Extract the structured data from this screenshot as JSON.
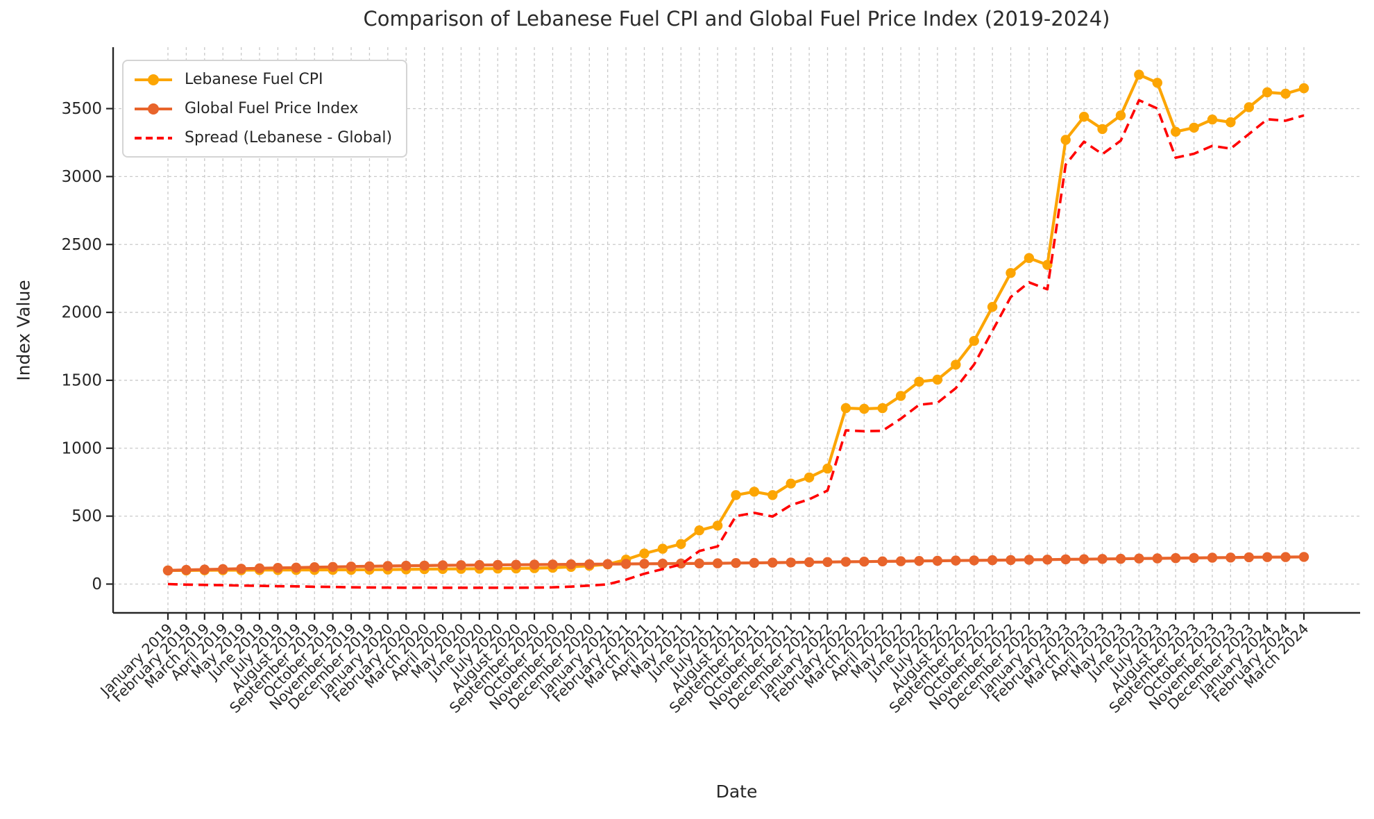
{
  "title": "Comparison of Lebanese Fuel CPI and Global Fuel Price Index (2019-2024)",
  "xlabel": "Date",
  "ylabel": "Index Value",
  "yticks": [
    0,
    500,
    1000,
    1500,
    2000,
    2500,
    3000,
    3500
  ],
  "colors": {
    "lebanese": "#FCA503",
    "global": "#E8642B",
    "spread": "#FF0000",
    "grid": "#c9c9c9",
    "axis": "#262626",
    "text": "#262626"
  },
  "legend": {
    "position": "upper left",
    "items": [
      {
        "label": "Lebanese Fuel CPI",
        "color": "#FCA503",
        "style": "solid",
        "marker": "circle"
      },
      {
        "label": "Global Fuel Price Index",
        "color": "#E8642B",
        "style": "solid",
        "marker": "circle"
      },
      {
        "label": "Spread (Lebanese - Global)",
        "color": "#FF0000",
        "style": "dashed",
        "marker": "none"
      }
    ]
  },
  "chart_data": {
    "type": "line",
    "title": "Comparison of Lebanese Fuel CPI and Global Fuel Price Index (2019-2024)",
    "xlabel": "Date",
    "ylabel": "Index Value",
    "grid": true,
    "legend_position": "upper left",
    "ylim": [
      -215,
      3955
    ],
    "yticks": [
      0,
      500,
      1000,
      1500,
      2000,
      2500,
      3000,
      3500
    ],
    "categories": [
      "January 2019",
      "February 2019",
      "March 2019",
      "April 2019",
      "May 2019",
      "June 2019",
      "July 2019",
      "August 2019",
      "September 2019",
      "October 2019",
      "November 2019",
      "December 2019",
      "January 2020",
      "February 2020",
      "March 2020",
      "April 2020",
      "May 2020",
      "June 2020",
      "July 2020",
      "August 2020",
      "September 2020",
      "October 2020",
      "November 2020",
      "December 2020",
      "January 2021",
      "February 2021",
      "March 2021",
      "April 2021",
      "May 2021",
      "June 2021",
      "July 2021",
      "August 2021",
      "September 2021",
      "October 2021",
      "November 2021",
      "December 2021",
      "January 2022",
      "February 2022",
      "March 2022",
      "April 2022",
      "May 2022",
      "June 2022",
      "July 2022",
      "August 2022",
      "September 2022",
      "October 2022",
      "November 2022",
      "December 2022",
      "January 2023",
      "February 2023",
      "March 2023",
      "April 2023",
      "May 2023",
      "June 2023",
      "July 2023",
      "August 2023",
      "September 2023",
      "October 2023",
      "November 2023",
      "December 2023",
      "January 2024",
      "February 2024",
      "March 2024"
    ],
    "series": [
      {
        "name": "Lebanese Fuel CPI",
        "color": "#FCA503",
        "style": "solid",
        "marker": "circle",
        "values": [
          100,
          100,
          101,
          102,
          102,
          103,
          103,
          104,
          104,
          105,
          105,
          106,
          107,
          108,
          110,
          111,
          112,
          113,
          114,
          115,
          117,
          120,
          126,
          135,
          145,
          180,
          225,
          260,
          295,
          395,
          430,
          655,
          680,
          655,
          740,
          785,
          850,
          1295,
          1290,
          1295,
          1385,
          1490,
          1505,
          1615,
          1790,
          2040,
          2290,
          2400,
          2350,
          3270,
          3440,
          3350,
          3450,
          3750,
          3690,
          3330,
          3360,
          3420,
          3400,
          3510,
          3620,
          3610,
          3650
        ]
      },
      {
        "name": "Global Fuel Price Index",
        "color": "#E8642B",
        "style": "solid",
        "marker": "circle",
        "values": [
          100,
          104,
          107,
          110,
          113,
          116,
          119,
          121,
          124,
          126,
          129,
          131,
          133,
          135,
          136,
          138,
          139,
          140,
          141,
          142,
          143,
          144,
          145,
          146,
          147,
          148,
          149,
          150,
          151,
          152,
          153,
          155,
          156,
          158,
          159,
          161,
          162,
          164,
          165,
          167,
          168,
          170,
          171,
          173,
          174,
          176,
          177,
          179,
          180,
          182,
          183,
          185,
          186,
          188,
          189,
          191,
          192,
          194,
          195,
          197,
          198,
          199,
          200
        ]
      },
      {
        "name": "Spread (Lebanese - Global)",
        "color": "#FF0000",
        "style": "dashed",
        "marker": "none",
        "values": [
          0,
          -4,
          -6,
          -8,
          -11,
          -13,
          -16,
          -17,
          -20,
          -21,
          -24,
          -25,
          -26,
          -27,
          -26,
          -27,
          -27,
          -27,
          -27,
          -27,
          -26,
          -24,
          -19,
          -11,
          -2,
          32,
          76,
          110,
          144,
          243,
          277,
          500,
          524,
          497,
          581,
          624,
          688,
          1131,
          1125,
          1128,
          1217,
          1320,
          1334,
          1442,
          1616,
          1864,
          2113,
          2221,
          2170,
          3088,
          3257,
          3165,
          3264,
          3562,
          3501,
          3139,
          3168,
          3226,
          3205,
          3313,
          3422,
          3411,
          3450
        ]
      }
    ]
  }
}
